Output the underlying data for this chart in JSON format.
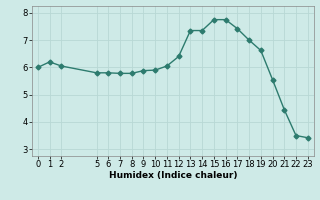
{
  "x": [
    0,
    1,
    2,
    5,
    6,
    7,
    8,
    9,
    10,
    11,
    12,
    13,
    14,
    15,
    16,
    17,
    18,
    19,
    20,
    21,
    22,
    23
  ],
  "y": [
    6.0,
    6.2,
    6.05,
    5.8,
    5.8,
    5.78,
    5.78,
    5.88,
    5.9,
    6.05,
    6.4,
    7.35,
    7.35,
    7.75,
    7.75,
    7.42,
    7.0,
    6.62,
    5.55,
    4.45,
    3.5,
    3.42
  ],
  "line_color": "#2d7b6e",
  "marker": "D",
  "marker_size": 2.5,
  "bg_color": "#ceeae7",
  "grid_color": "#b8d8d5",
  "xlabel": "Humidex (Indice chaleur)",
  "xlim": [
    -0.5,
    23.5
  ],
  "ylim": [
    2.75,
    8.25
  ],
  "yticks": [
    3,
    4,
    5,
    6,
    7,
    8
  ],
  "xticks": [
    0,
    1,
    2,
    5,
    6,
    7,
    8,
    9,
    10,
    11,
    12,
    13,
    14,
    15,
    16,
    17,
    18,
    19,
    20,
    21,
    22,
    23
  ],
  "xlabel_fontsize": 6.5,
  "tick_fontsize": 6.0,
  "linewidth": 1.0
}
